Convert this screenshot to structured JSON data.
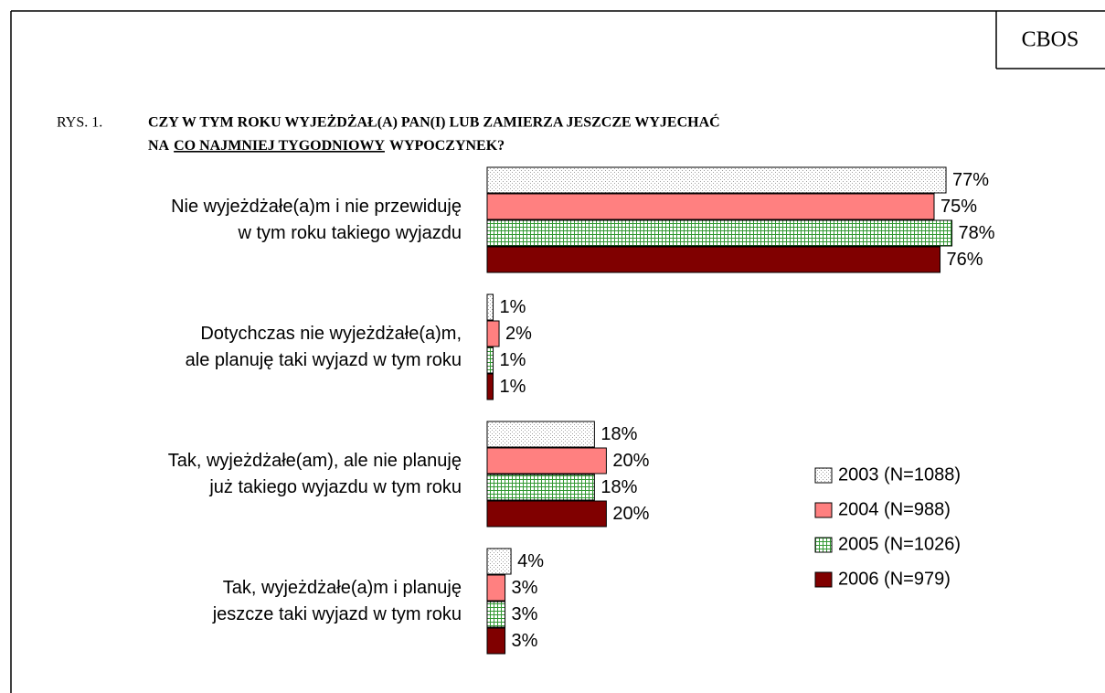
{
  "brand": "CBOS",
  "chart_data": {
    "type": "barh",
    "title": {
      "prefix": "RYS. 1.",
      "line1": "CZY W TYM ROKU WYJEŻDŻAŁ(A) PAN(I) LUB ZAMIERZA JESZCZE WYJECHAĆ",
      "line2_parts": [
        "NA",
        "CO NAJMNIEJ TYGODNIOWY",
        "WYPOCZYNEK?"
      ],
      "underlined_part": 1
    },
    "categories": [
      [
        "Nie wyjeżdżałe(a)m i nie przewiduję",
        "w tym roku takiego wyjazdu"
      ],
      [
        "Dotychczas nie wyjeżdżałe(a)m,",
        "ale planuję taki wyjazd w tym roku"
      ],
      [
        "Tak, wyjeżdżałe(am), ale nie planuję",
        "już takiego wyjazdu w tym roku"
      ],
      [
        "Tak, wyjeżdżałe(a)m i planuję",
        "jeszcze taki wyjazd w tym roku"
      ]
    ],
    "series": [
      {
        "name": "2003 (N=1088)",
        "color": "#a0a0a0",
        "pattern": "dots",
        "values": [
          77,
          1,
          18,
          4
        ],
        "value_labels": [
          "77%",
          "1%",
          "18%",
          "4%"
        ]
      },
      {
        "name": "2004 (N=988)",
        "color": "#ff8080",
        "values": [
          75,
          2,
          20,
          3
        ],
        "value_labels": [
          "75%",
          "2%",
          "20%",
          "3%"
        ]
      },
      {
        "name": "2005 (N=1026)",
        "color": "#339933",
        "pattern": "grid",
        "values": [
          78,
          1,
          18,
          3
        ],
        "value_labels": [
          "78%",
          "1%",
          "18%",
          "3%"
        ]
      },
      {
        "name": "2006 (N=979)",
        "color": "#800000",
        "values": [
          76,
          1,
          20,
          3
        ],
        "value_labels": [
          "76%",
          "1%",
          "20%",
          "3%"
        ]
      }
    ],
    "xlim": [
      0,
      100
    ],
    "legend": "right"
  }
}
